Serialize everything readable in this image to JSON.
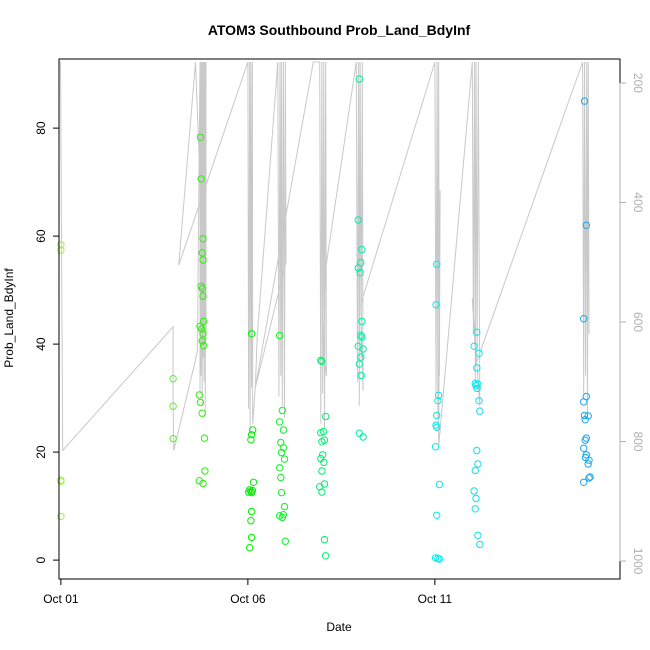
{
  "chart_data": {
    "type": "scatter",
    "title": "ATOM3 Southbound Prob_Land_BdyInf",
    "xlabel": "Date",
    "ylabel": "Prob_Land_BdyInf",
    "x_unit": "day of October",
    "xlim": [
      0.95,
      15.95
    ],
    "ylim": [
      -3.5,
      92.8
    ],
    "y2lim": [
      1030,
      160
    ],
    "x_ticks": [
      {
        "value": 1,
        "label": "Oct 01"
      },
      {
        "value": 6,
        "label": "Oct 06"
      },
      {
        "value": 11,
        "label": "Oct 11"
      }
    ],
    "y_ticks": [
      0,
      20,
      40,
      60,
      80
    ],
    "y2_ticks": [
      200,
      400,
      600,
      800,
      1000
    ],
    "grid": false,
    "legend": "none",
    "colors": {
      "oct01": "#9cf24a",
      "oct04": "#5ff02a",
      "oct05": "#2ef00a",
      "oct06": "#00f000",
      "oct07": "#11f02a",
      "oct08": "#00f06a",
      "oct09": "#00f0a8",
      "oct11": "#00ecec",
      "oct12": "#10e0f0",
      "oct15": "#18a8f0",
      "line": "#c8c8c8"
    },
    "point_groups": [
      {
        "color_key": "oct01",
        "points": [
          [
            1.0,
            58.4
          ],
          [
            1.0,
            57.4
          ],
          [
            1.0,
            14.8
          ],
          [
            1.0,
            14.6
          ],
          [
            1.0,
            8.1
          ]
        ]
      },
      {
        "color_key": "oct04",
        "points": [
          [
            4.0,
            33.6
          ],
          [
            4.0,
            28.5
          ],
          [
            4.0,
            22.5
          ]
        ]
      },
      {
        "color_key": "oct05",
        "points": [
          [
            4.73,
            78.3
          ],
          [
            4.75,
            70.6
          ],
          [
            4.8,
            59.5
          ],
          [
            4.78,
            56.9
          ],
          [
            4.8,
            55.6
          ],
          [
            4.75,
            50.7
          ],
          [
            4.78,
            50.3
          ],
          [
            4.8,
            48.9
          ],
          [
            4.82,
            44.2
          ],
          [
            4.72,
            43.3
          ],
          [
            4.76,
            42.8
          ],
          [
            4.8,
            41.9
          ],
          [
            4.78,
            40.6
          ],
          [
            4.82,
            39.7
          ],
          [
            4.7,
            30.6
          ],
          [
            4.73,
            29.2
          ],
          [
            4.78,
            27.2
          ],
          [
            4.84,
            22.6
          ],
          [
            4.85,
            16.5
          ],
          [
            4.7,
            14.7
          ],
          [
            4.8,
            14.2
          ]
        ]
      },
      {
        "color_key": "oct06",
        "points": [
          [
            6.1,
            41.9
          ],
          [
            6.13,
            24.1
          ],
          [
            6.1,
            23.2
          ],
          [
            6.08,
            22.3
          ],
          [
            6.15,
            14.4
          ],
          [
            6.05,
            13.0
          ],
          [
            6.08,
            12.7
          ],
          [
            6.1,
            12.5
          ],
          [
            6.12,
            12.9
          ],
          [
            6.02,
            12.6
          ],
          [
            6.1,
            9.0
          ],
          [
            6.08,
            7.3
          ],
          [
            6.1,
            4.2
          ],
          [
            6.05,
            2.3
          ]
        ]
      },
      {
        "color_key": "oct07",
        "points": [
          [
            6.85,
            41.6
          ],
          [
            6.92,
            27.7
          ],
          [
            6.85,
            25.6
          ],
          [
            6.95,
            24.1
          ],
          [
            6.88,
            21.8
          ],
          [
            6.95,
            20.8
          ],
          [
            6.9,
            19.9
          ],
          [
            6.98,
            18.7
          ],
          [
            6.85,
            17.1
          ],
          [
            6.88,
            15.3
          ],
          [
            6.9,
            12.5
          ],
          [
            6.98,
            9.9
          ],
          [
            6.95,
            8.4
          ],
          [
            6.85,
            8.2
          ],
          [
            6.92,
            7.9
          ],
          [
            7.0,
            3.5
          ]
        ]
      },
      {
        "color_key": "oct08",
        "points": [
          [
            7.95,
            37.0
          ],
          [
            7.98,
            36.8
          ],
          [
            8.08,
            26.6
          ],
          [
            7.95,
            23.6
          ],
          [
            8.02,
            23.8
          ],
          [
            8.05,
            22.2
          ],
          [
            7.98,
            21.9
          ],
          [
            8.0,
            19.5
          ],
          [
            7.95,
            18.8
          ],
          [
            8.03,
            18.1
          ],
          [
            7.98,
            16.5
          ],
          [
            8.05,
            14.1
          ],
          [
            7.92,
            13.6
          ],
          [
            7.98,
            12.6
          ],
          [
            8.05,
            3.8
          ],
          [
            8.08,
            0.8
          ]
        ]
      },
      {
        "color_key": "oct09",
        "points": [
          [
            8.98,
            89.1
          ],
          [
            8.95,
            63.0
          ],
          [
            9.05,
            57.5
          ],
          [
            9.02,
            55.1
          ],
          [
            8.95,
            54.1
          ],
          [
            9.0,
            53.2
          ],
          [
            9.05,
            44.2
          ],
          [
            9.02,
            41.6
          ],
          [
            9.05,
            41.3
          ],
          [
            8.95,
            39.6
          ],
          [
            9.08,
            39.1
          ],
          [
            9.02,
            37.6
          ],
          [
            8.98,
            36.3
          ],
          [
            9.03,
            34.2
          ],
          [
            8.98,
            23.5
          ],
          [
            9.08,
            22.8
          ]
        ]
      },
      {
        "color_key": "oct11",
        "points": [
          [
            11.05,
            54.8
          ],
          [
            11.03,
            47.3
          ],
          [
            11.1,
            30.5
          ],
          [
            11.08,
            29.5
          ],
          [
            11.05,
            26.8
          ],
          [
            11.03,
            25.0
          ],
          [
            11.05,
            24.6
          ],
          [
            11.02,
            21.0
          ],
          [
            11.12,
            14.0
          ],
          [
            11.05,
            8.3
          ],
          [
            11.02,
            0.4
          ],
          [
            11.08,
            0.3
          ],
          [
            11.12,
            0.2
          ]
        ]
      },
      {
        "color_key": "oct12",
        "points": [
          [
            12.12,
            42.2
          ],
          [
            12.18,
            38.3
          ],
          [
            12.05,
            39.6
          ],
          [
            12.12,
            35.6
          ],
          [
            12.08,
            32.7
          ],
          [
            12.1,
            32.3
          ],
          [
            12.15,
            32.6
          ],
          [
            12.13,
            31.8
          ],
          [
            12.18,
            29.5
          ],
          [
            12.2,
            27.6
          ],
          [
            12.12,
            20.3
          ],
          [
            12.15,
            17.8
          ],
          [
            12.08,
            16.6
          ],
          [
            12.05,
            12.8
          ],
          [
            12.1,
            11.4
          ],
          [
            12.08,
            9.5
          ],
          [
            12.15,
            4.6
          ],
          [
            12.2,
            2.9
          ]
        ]
      },
      {
        "color_key": "oct15",
        "points": [
          [
            15.0,
            85.0
          ],
          [
            15.05,
            62.0
          ],
          [
            14.98,
            44.7
          ],
          [
            15.05,
            30.3
          ],
          [
            14.98,
            29.3
          ],
          [
            15.0,
            26.8
          ],
          [
            15.1,
            26.7
          ],
          [
            15.02,
            26.0
          ],
          [
            15.05,
            22.6
          ],
          [
            15.02,
            22.2
          ],
          [
            14.98,
            20.7
          ],
          [
            15.05,
            19.5
          ],
          [
            15.03,
            19.0
          ],
          [
            15.12,
            18.5
          ],
          [
            15.1,
            17.8
          ],
          [
            15.15,
            15.4
          ],
          [
            15.12,
            15.2
          ],
          [
            14.98,
            14.4
          ]
        ]
      }
    ],
    "line_series": {
      "name": "",
      "axis": "y2",
      "points": [
        [
          0.98,
          165
        ],
        [
          0.99,
          165
        ],
        [
          1.05,
          815
        ],
        [
          4.0,
          608
        ],
        [
          4.0,
          735
        ],
        [
          4.02,
          815
        ],
        [
          4.65,
          650
        ],
        [
          4.72,
          165
        ],
        [
          4.72,
          720
        ],
        [
          4.75,
          165
        ],
        [
          4.75,
          690
        ],
        [
          4.78,
          165
        ],
        [
          4.78,
          740
        ],
        [
          4.8,
          165
        ],
        [
          4.8,
          660
        ],
        [
          4.83,
          165
        ],
        [
          4.83,
          700
        ],
        [
          4.86,
          165
        ],
        [
          4.86,
          760
        ],
        [
          4.88,
          165
        ],
        [
          4.88,
          630
        ],
        [
          4.6,
          165
        ],
        [
          4.15,
          505
        ],
        [
          6.0,
          165
        ],
        [
          6.02,
          745
        ],
        [
          6.05,
          165
        ],
        [
          6.06,
          790
        ],
        [
          6.08,
          165
        ],
        [
          6.1,
          710
        ],
        [
          6.12,
          165
        ],
        [
          6.13,
          770
        ],
        [
          6.2,
          710
        ],
        [
          6.25,
          625
        ],
        [
          6.8,
          165
        ],
        [
          6.83,
          725
        ],
        [
          6.86,
          165
        ],
        [
          6.88,
          690
        ],
        [
          6.9,
          165
        ],
        [
          6.92,
          740
        ],
        [
          6.95,
          165
        ],
        [
          6.98,
          760
        ],
        [
          7.0,
          165
        ],
        [
          7.02,
          500
        ],
        [
          6.2,
          710
        ],
        [
          7.75,
          165
        ],
        [
          7.92,
          165
        ],
        [
          7.95,
          770
        ],
        [
          7.98,
          165
        ],
        [
          8.0,
          720
        ],
        [
          8.03,
          165
        ],
        [
          8.05,
          780
        ],
        [
          8.08,
          165
        ],
        [
          8.1,
          690
        ],
        [
          8.02,
          650
        ],
        [
          8.08,
          510
        ],
        [
          8.9,
          165
        ],
        [
          8.93,
          700
        ],
        [
          8.96,
          165
        ],
        [
          8.98,
          740
        ],
        [
          9.0,
          165
        ],
        [
          9.03,
          660
        ],
        [
          9.06,
          165
        ],
        [
          9.08,
          715
        ],
        [
          9.02,
          570
        ],
        [
          11.0,
          165
        ],
        [
          11.03,
          720
        ],
        [
          11.06,
          165
        ],
        [
          11.08,
          760
        ],
        [
          11.1,
          165
        ],
        [
          11.12,
          690
        ],
        [
          11.14,
          380
        ],
        [
          11.1,
          810
        ],
        [
          12.0,
          165
        ],
        [
          12.03,
          620
        ],
        [
          12.06,
          165
        ],
        [
          12.08,
          700
        ],
        [
          12.1,
          165
        ],
        [
          12.13,
          650
        ],
        [
          12.16,
          165
        ],
        [
          12.2,
          740
        ],
        [
          12.0,
          560
        ],
        [
          12.1,
          670
        ],
        [
          14.95,
          165
        ],
        [
          14.98,
          720
        ],
        [
          15.0,
          165
        ],
        [
          15.03,
          690
        ],
        [
          15.06,
          165
        ],
        [
          15.08,
          760
        ],
        [
          15.1,
          165
        ],
        [
          15.12,
          620
        ]
      ]
    }
  }
}
